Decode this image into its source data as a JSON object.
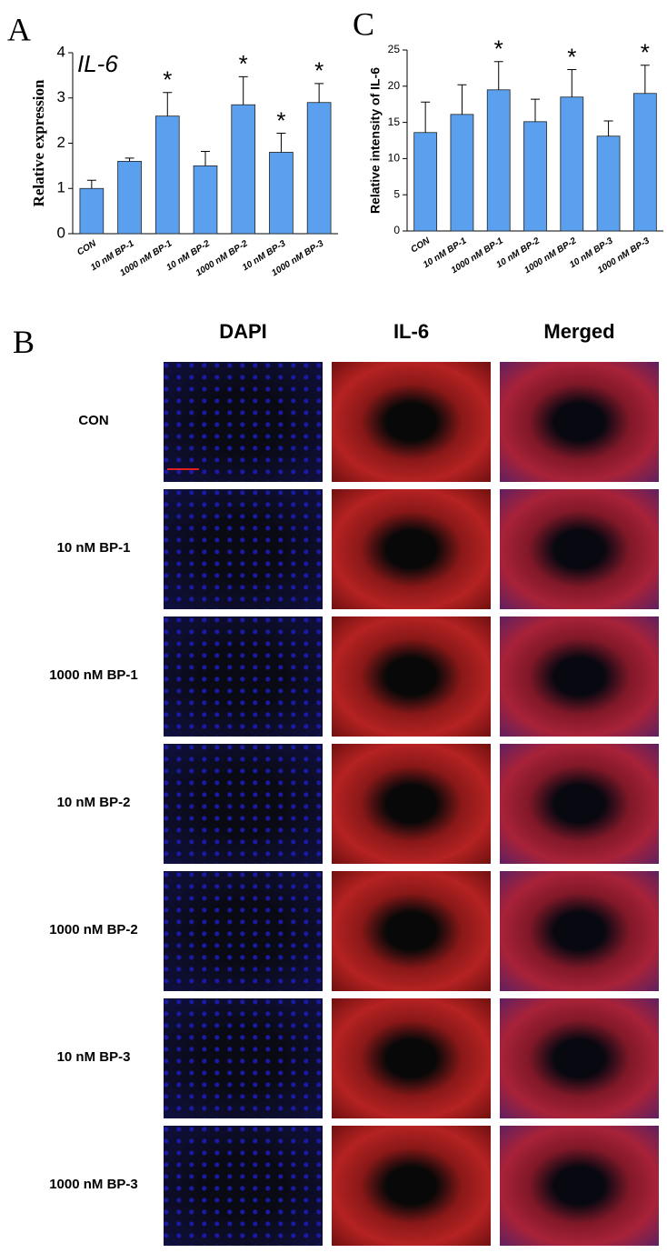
{
  "chart_data": [
    {
      "type": "bar",
      "panel_label": "A",
      "title": "IL-6",
      "ylabel": "Relative expression",
      "categories": [
        "CON",
        "10 nM BP-1",
        "1000 nM BP-1",
        "10 nM BP-2",
        "1000 nM BP-2",
        "10 nM BP-3",
        "1000 nM BP-3"
      ],
      "values": [
        1.0,
        1.6,
        2.6,
        1.5,
        2.85,
        1.8,
        2.9
      ],
      "errors": [
        0.18,
        0.07,
        0.52,
        0.32,
        0.62,
        0.42,
        0.42
      ],
      "significance": [
        null,
        null,
        "*",
        null,
        "*",
        "*",
        "*"
      ],
      "color": "#5aa0ee",
      "ylim": [
        0,
        4
      ],
      "yticks": [
        0,
        1,
        2,
        3,
        4
      ]
    },
    {
      "type": "bar",
      "panel_label": "C",
      "ylabel": "Relative intensity of IL-6",
      "categories": [
        "CON",
        "10 nM BP-1",
        "1000 nM BP-1",
        "10 nM BP-2",
        "1000 nM BP-2",
        "10 nM BP-3",
        "1000 nM BP-3"
      ],
      "values": [
        13.6,
        16.1,
        19.5,
        15.1,
        18.5,
        13.1,
        19.0
      ],
      "errors": [
        4.2,
        4.1,
        3.9,
        3.1,
        3.8,
        2.1,
        3.9
      ],
      "significance": [
        null,
        null,
        "*",
        null,
        "*",
        null,
        "*"
      ],
      "color": "#5aa0ee",
      "ylim": [
        0,
        25
      ],
      "yticks": [
        0,
        5,
        10,
        15,
        20,
        25
      ]
    }
  ],
  "panel_b": {
    "panel_label": "B",
    "columns": [
      "DAPI",
      "IL-6",
      "Merged"
    ],
    "rows": [
      "CON",
      "10 nM BP-1",
      "1000 nM BP-1",
      "10 nM BP-2",
      "1000 nM BP-2",
      "10 nM BP-3",
      "1000 nM BP-3"
    ]
  }
}
